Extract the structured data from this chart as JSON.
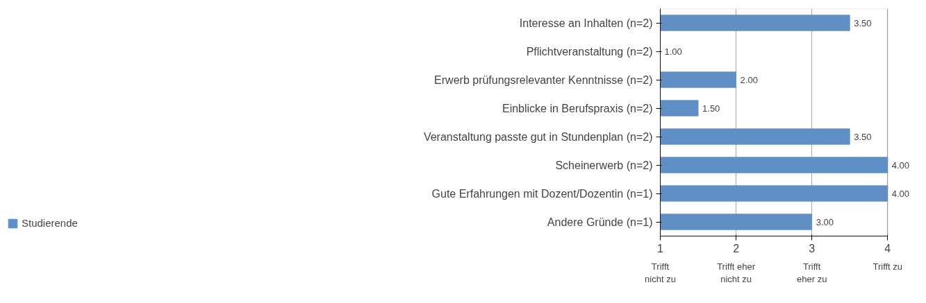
{
  "chart_data": {
    "type": "bar",
    "orientation": "horizontal",
    "categories": [
      "Interesse an Inhalten (n=2)",
      "Pflichtveranstaltung (n=2)",
      "Erwerb prüfungsrelevanter Kenntnisse (n=2)",
      "Einblicke in Berufspraxis (n=2)",
      "Veranstaltung passte gut in Stundenplan (n=2)",
      "Scheinerwerb (n=2)",
      "Gute Erfahrungen mit Dozent/Dozentin (n=1)",
      "Andere Gründe (n=1)"
    ],
    "series": [
      {
        "name": "Studierende",
        "color": "#5f8fc4",
        "values": [
          3.5,
          1.0,
          2.0,
          1.5,
          3.5,
          4.0,
          4.0,
          3.0
        ],
        "value_labels": [
          "3.50",
          "1.00",
          "2.00",
          "1.50",
          "3.50",
          "4.00",
          "4.00",
          "3.00"
        ]
      }
    ],
    "xlim": [
      1,
      4
    ],
    "xticks": [
      1,
      2,
      3,
      4
    ],
    "annotations": [
      "Trifft\nnicht zu",
      "Trifft eher\nnicht zu",
      "Trifft\neher zu",
      "Trifft zu"
    ],
    "grid": "x",
    "legend": "bottom left"
  }
}
